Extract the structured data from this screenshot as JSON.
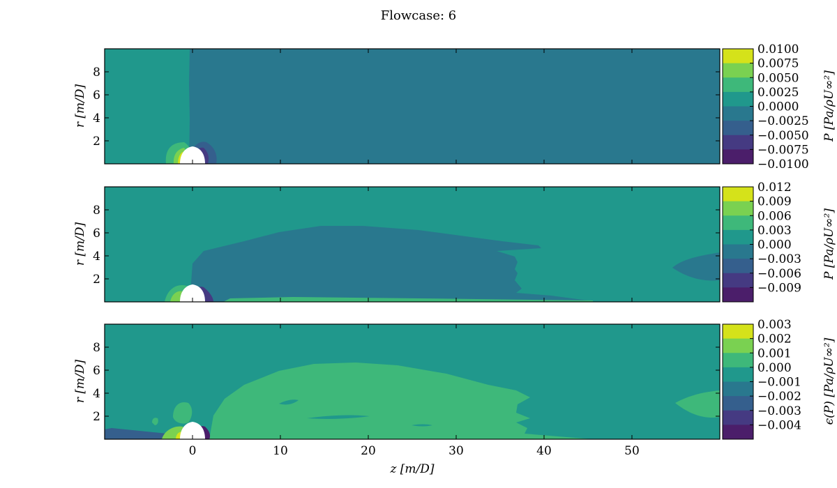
{
  "figure": {
    "title": "Flowcase: 6"
  },
  "chart_data": [
    {
      "type": "contour",
      "xlabel": "",
      "ylabel": "r [m/D]",
      "xlim": [
        -10,
        60
      ],
      "ylim": [
        0,
        10
      ],
      "x_ticks": [],
      "y_ticks": [
        2,
        4,
        6,
        8
      ],
      "colorbar": {
        "label": "P [Pa/ρU∞²]",
        "levels": [
          -0.01,
          -0.0075,
          -0.005,
          -0.0025,
          0.0,
          0.0025,
          0.005,
          0.0075,
          0.01
        ],
        "tick_labels": [
          "0.0100",
          "0.0075",
          "0.0050",
          "0.0025",
          "0.0000",
          "−0.0025",
          "−0.0050",
          "−0.0075",
          "−0.0100"
        ],
        "colors": [
          "#d5e21a",
          "#7ad151",
          "#3eb87a",
          "#20988c",
          "#29788e",
          "#355f8d",
          "#453a82",
          "#4b1e6a"
        ]
      },
      "dominant_field": {
        "upstream_color": "#20988c",
        "downstream_color": "#29788e"
      }
    },
    {
      "type": "contour",
      "xlabel": "",
      "ylabel": "r [m/D]",
      "xlim": [
        -10,
        60
      ],
      "ylim": [
        0,
        10
      ],
      "x_ticks": [],
      "y_ticks": [
        2,
        4,
        6,
        8
      ],
      "colorbar": {
        "label": "P [Pa/ρU∞²]",
        "levels": [
          -0.009,
          -0.006,
          -0.003,
          0.0,
          0.003,
          0.006,
          0.009,
          0.012
        ],
        "tick_labels": [
          "0.012",
          "0.009",
          "0.006",
          "0.003",
          "0.000",
          "−0.003",
          "−0.006",
          "−0.009"
        ],
        "colors": [
          "#d5e21a",
          "#7ad151",
          "#3eb87a",
          "#20988c",
          "#29788e",
          "#355f8d",
          "#453a82",
          "#4b1e6a"
        ]
      },
      "dominant_field": {
        "background_color": "#20988c",
        "wake_color": "#29788e"
      }
    },
    {
      "type": "contour",
      "xlabel": "z [m/D]",
      "ylabel": "r [m/D]",
      "xlim": [
        -10,
        60
      ],
      "ylim": [
        0,
        10
      ],
      "x_ticks": [
        0,
        10,
        20,
        30,
        40,
        50
      ],
      "y_ticks": [
        2,
        4,
        6,
        8
      ],
      "colorbar": {
        "label": "ϵ(P) [Pa/ρU∞²]",
        "levels": [
          -0.004,
          -0.003,
          -0.002,
          -0.001,
          0.0,
          0.001,
          0.002,
          0.003
        ],
        "tick_labels": [
          "0.003",
          "0.002",
          "0.001",
          "0.000",
          "−0.001",
          "−0.002",
          "−0.003",
          "−0.004"
        ],
        "colors": [
          "#d5e21a",
          "#7ad151",
          "#3eb87a",
          "#20988c",
          "#29788e",
          "#355f8d",
          "#453a82",
          "#4b1e6a"
        ]
      },
      "dominant_field": {
        "background_color": "#20988c",
        "wake_color": "#3eb87a"
      }
    }
  ]
}
